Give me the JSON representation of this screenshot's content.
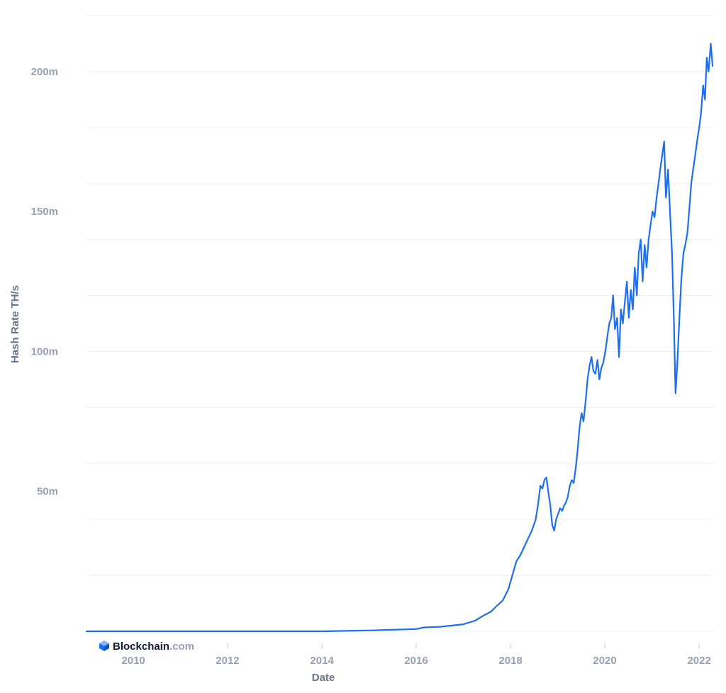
{
  "chart_data": {
    "type": "line",
    "title": "",
    "xlabel": "Date",
    "ylabel": "Hash Rate TH/s",
    "x_tick_labels": [
      "2010",
      "2012",
      "2014",
      "2016",
      "2018",
      "2020",
      "2022"
    ],
    "y_tick_labels": [
      "50m",
      "100m",
      "150m",
      "200m"
    ],
    "y_ticks": [
      50000000,
      100000000,
      150000000,
      200000000
    ],
    "xlim": [
      "2009-01-03",
      "2022-04-20"
    ],
    "ylim": [
      0,
      220000000
    ],
    "grid": true,
    "legend": "none",
    "colors": {
      "series": "#1d6ff2",
      "grid": "#eef0f4",
      "tick_text": "#98a1b3",
      "axis_title": "#697487"
    },
    "series": [
      {
        "x": [
          "2009-01-03",
          "2012-01-01",
          "2014-01-01",
          "2015-01-01",
          "2016-01-01",
          "2016-03-01",
          "2016-07-01",
          "2017-01-01",
          "2017-04-01",
          "2017-06-01",
          "2017-08-01",
          "2017-09-15",
          "2017-11-01",
          "2017-12-15",
          "2018-01-15",
          "2018-02-15",
          "2018-03-15",
          "2018-04-15",
          "2018-05-15",
          "2018-06-15",
          "2018-07-15",
          "2018-08-01",
          "2018-08-20",
          "2018-09-05",
          "2018-09-20",
          "2018-10-05",
          "2018-10-20",
          "2018-11-05",
          "2018-11-20",
          "2018-12-05",
          "2018-12-20",
          "2019-01-05",
          "2019-01-20",
          "2019-02-05",
          "2019-02-20",
          "2019-03-05",
          "2019-03-20",
          "2019-04-05",
          "2019-04-20",
          "2019-05-05",
          "2019-05-20",
          "2019-06-05",
          "2019-06-20",
          "2019-07-05",
          "2019-07-20",
          "2019-08-05",
          "2019-08-20",
          "2019-09-05",
          "2019-09-20",
          "2019-10-05",
          "2019-10-20",
          "2019-11-05",
          "2019-11-20",
          "2019-12-05",
          "2019-12-20",
          "2020-01-05",
          "2020-01-20",
          "2020-02-05",
          "2020-02-20",
          "2020-03-05",
          "2020-03-20",
          "2020-04-05",
          "2020-04-20",
          "2020-05-05",
          "2020-05-20",
          "2020-06-05",
          "2020-06-20",
          "2020-07-05",
          "2020-07-20",
          "2020-08-05",
          "2020-08-20",
          "2020-09-05",
          "2020-09-20",
          "2020-10-05",
          "2020-10-20",
          "2020-11-05",
          "2020-11-20",
          "2020-12-05",
          "2020-12-20",
          "2021-01-05",
          "2021-01-20",
          "2021-02-05",
          "2021-02-20",
          "2021-03-05",
          "2021-03-20",
          "2021-04-05",
          "2021-04-18",
          "2021-05-05",
          "2021-05-20",
          "2021-06-05",
          "2021-06-20",
          "2021-07-02",
          "2021-07-15",
          "2021-08-01",
          "2021-08-15",
          "2021-09-01",
          "2021-09-15",
          "2021-10-01",
          "2021-10-15",
          "2021-11-01",
          "2021-11-15",
          "2021-12-01",
          "2021-12-15",
          "2022-01-01",
          "2022-01-15",
          "2022-02-01",
          "2022-02-15",
          "2022-03-01",
          "2022-03-15",
          "2022-04-01",
          "2022-04-15"
        ],
        "y": [
          0,
          12,
          10000,
          300000,
          800000,
          1400000,
          1600000,
          2500000,
          3800000,
          5500000,
          7000000,
          9000000,
          11000000,
          15000000,
          20000000,
          25000000,
          27000000,
          30000000,
          33000000,
          36000000,
          40000000,
          45000000,
          52000000,
          51000000,
          54000000,
          55000000,
          50000000,
          45000000,
          38000000,
          36000000,
          40000000,
          42000000,
          44000000,
          43000000,
          45000000,
          46000000,
          48000000,
          52000000,
          54000000,
          53000000,
          58000000,
          65000000,
          73000000,
          78000000,
          75000000,
          82000000,
          90000000,
          95000000,
          98000000,
          93000000,
          92000000,
          97000000,
          90000000,
          94000000,
          96000000,
          100000000,
          105000000,
          110000000,
          112000000,
          120000000,
          108000000,
          112000000,
          98000000,
          115000000,
          110000000,
          118000000,
          125000000,
          112000000,
          122000000,
          115000000,
          130000000,
          120000000,
          135000000,
          140000000,
          125000000,
          138000000,
          130000000,
          140000000,
          145000000,
          150000000,
          148000000,
          155000000,
          160000000,
          165000000,
          170000000,
          175000000,
          155000000,
          165000000,
          150000000,
          135000000,
          110000000,
          85000000,
          95000000,
          112000000,
          125000000,
          135000000,
          138000000,
          142000000,
          150000000,
          160000000,
          165000000,
          170000000,
          175000000,
          180000000,
          185000000,
          195000000,
          190000000,
          205000000,
          200000000,
          210000000,
          202000000
        ]
      }
    ]
  },
  "branding": {
    "name": "Blockchain",
    "suffix": ".com",
    "logo_icon": "blockchain-cube-icon",
    "logo_color": "#1d6ff2"
  }
}
